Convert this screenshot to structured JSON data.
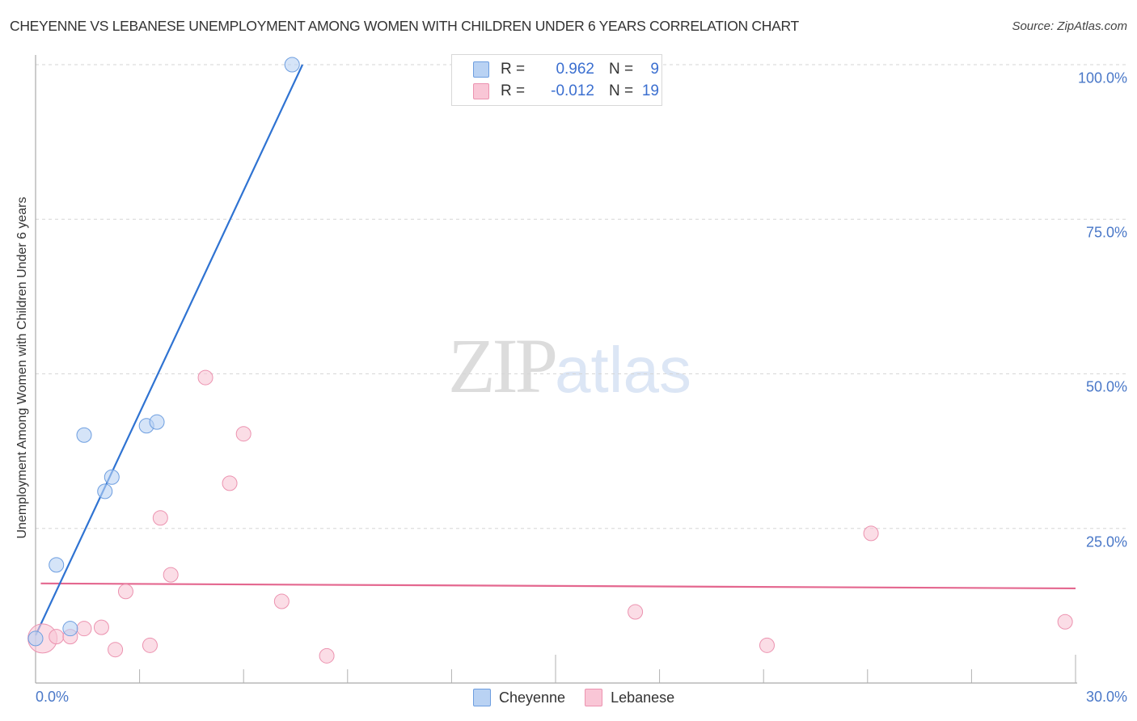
{
  "header": {
    "title": "CHEYENNE VS LEBANESE UNEMPLOYMENT AMONG WOMEN WITH CHILDREN UNDER 6 YEARS CORRELATION CHART",
    "source": "Source: ZipAtlas.com"
  },
  "watermark": {
    "zip": "ZIP",
    "atlas": "atlas"
  },
  "colors": {
    "cheyenne_fill": "#b9d2f3",
    "cheyenne_stroke": "#6d9ee0",
    "cheyenne_line": "#2f73d2",
    "lebanese_fill": "#f9c6d6",
    "lebanese_stroke": "#ec93b0",
    "lebanese_line": "#e4678f",
    "tick_label": "#4a78c8"
  },
  "legend_top": {
    "rows": [
      {
        "r_label": "R =",
        "r_value": "0.962",
        "n_label": "N =",
        "n_value": "9"
      },
      {
        "r_label": "R =",
        "r_value": "-0.012",
        "n_label": "N =",
        "n_value": "19"
      }
    ]
  },
  "legend_bottom": {
    "items": [
      {
        "label": "Cheyenne"
      },
      {
        "label": "Lebanese"
      }
    ]
  },
  "axes": {
    "ylabel": "Unemployment Among Women with Children Under 6 years",
    "yticks": [
      "100.0%",
      "75.0%",
      "50.0%",
      "25.0%"
    ],
    "xticks": [
      "0.0%",
      "30.0%"
    ]
  },
  "chart_data": {
    "type": "scatter",
    "title": "CHEYENNE VS LEBANESE UNEMPLOYMENT AMONG WOMEN WITH CHILDREN UNDER 6 YEARS CORRELATION CHART",
    "xlabel": "",
    "ylabel": "Unemployment Among Women with Children Under 6 years",
    "xlim": [
      0,
      30
    ],
    "ylim": [
      0,
      100
    ],
    "x_tick_labels": [
      "0.0%",
      "30.0%"
    ],
    "y_tick_labels": [
      "25.0%",
      "50.0%",
      "75.0%",
      "100.0%"
    ],
    "grid": "horizontal dashed",
    "legend_position": "top-center and bottom-center",
    "series": [
      {
        "name": "Cheyenne",
        "R": 0.962,
        "N": 9,
        "points": [
          {
            "x": 0.0,
            "y": 7.2
          },
          {
            "x": 0.6,
            "y": 19.1
          },
          {
            "x": 1.0,
            "y": 8.8
          },
          {
            "x": 1.4,
            "y": 40.1
          },
          {
            "x": 2.0,
            "y": 31.0
          },
          {
            "x": 2.2,
            "y": 33.3
          },
          {
            "x": 3.2,
            "y": 41.6
          },
          {
            "x": 3.5,
            "y": 42.2
          },
          {
            "x": 7.4,
            "y": 100.0
          }
        ],
        "trendline": {
          "x": [
            0.0,
            7.7
          ],
          "y": [
            7.7,
            100.0
          ]
        }
      },
      {
        "name": "Lebanese",
        "R": -0.012,
        "N": 19,
        "points": [
          {
            "x": 0.2,
            "y": 7.2,
            "size": "large"
          },
          {
            "x": 0.6,
            "y": 7.5
          },
          {
            "x": 1.0,
            "y": 7.5
          },
          {
            "x": 1.4,
            "y": 8.8
          },
          {
            "x": 1.9,
            "y": 9.0
          },
          {
            "x": 2.3,
            "y": 5.4
          },
          {
            "x": 2.6,
            "y": 14.8
          },
          {
            "x": 3.3,
            "y": 6.1
          },
          {
            "x": 3.6,
            "y": 26.7
          },
          {
            "x": 3.9,
            "y": 17.5
          },
          {
            "x": 4.9,
            "y": 49.4
          },
          {
            "x": 5.6,
            "y": 32.3
          },
          {
            "x": 6.0,
            "y": 40.3
          },
          {
            "x": 7.1,
            "y": 13.2
          },
          {
            "x": 8.4,
            "y": 4.4
          },
          {
            "x": 17.3,
            "y": 11.5
          },
          {
            "x": 21.1,
            "y": 6.1
          },
          {
            "x": 24.1,
            "y": 24.2
          },
          {
            "x": 29.7,
            "y": 9.9
          }
        ],
        "trendline": {
          "x": [
            0.15,
            30.0
          ],
          "y": [
            16.1,
            15.3
          ]
        }
      }
    ]
  }
}
